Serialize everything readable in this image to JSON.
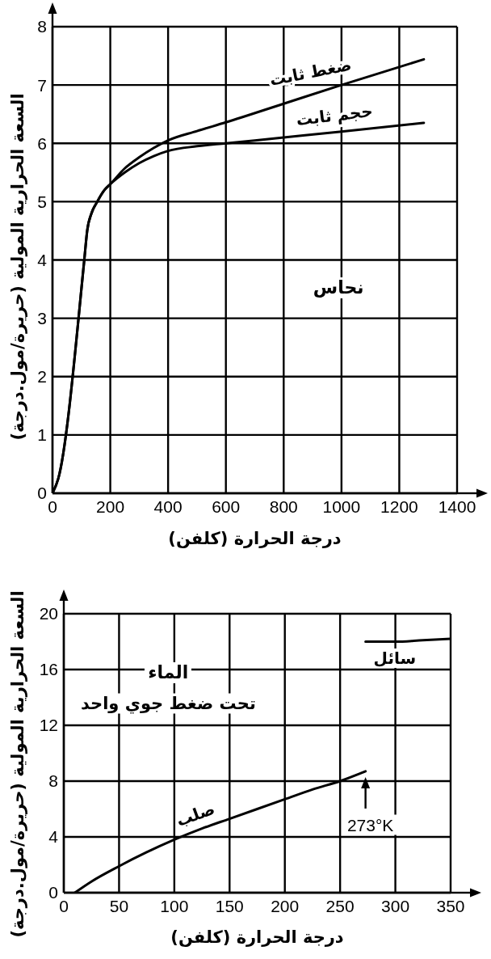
{
  "chart_data": [
    {
      "type": "line",
      "title": "نحاس",
      "xlabel": "درجة الحرارة (كلفن)",
      "ylabel": "السعة الحرارية المولية (حريرة/مول.درجة)",
      "series": [
        {
          "name": "ضغط ثابت",
          "color": "#000000",
          "x": [
            0,
            20,
            110,
            120,
            135,
            155,
            180,
            200,
            250,
            300,
            350,
            400,
            500,
            600,
            800,
            1000,
            1285
          ],
          "values": [
            0,
            0.25,
            4.0,
            4.5,
            4.8,
            5.0,
            5.2,
            5.3,
            5.57,
            5.76,
            5.92,
            6.05,
            6.21,
            6.36,
            6.68,
            7.0,
            7.44
          ]
        },
        {
          "name": "حجم ثابت",
          "color": "#000000",
          "x": [
            0,
            20,
            110,
            120,
            135,
            155,
            180,
            200,
            250,
            300,
            350,
            400,
            500,
            600,
            800,
            1000,
            1285
          ],
          "values": [
            0,
            0.25,
            4.0,
            4.5,
            4.8,
            5.0,
            5.2,
            5.3,
            5.5,
            5.66,
            5.78,
            5.87,
            5.95,
            6.0,
            6.1,
            6.2,
            6.35
          ]
        }
      ],
      "xlim": [
        0,
        1400
      ],
      "ylim": [
        0,
        8
      ],
      "xticks": [
        0,
        200,
        400,
        600,
        800,
        1000,
        1200,
        1400
      ],
      "yticks": [
        0,
        1,
        2,
        3,
        4,
        5,
        6,
        7,
        8
      ],
      "grid": true
    },
    {
      "type": "line",
      "title": "الماء",
      "subtitle": "تحت ضغط جوي واحد",
      "xlabel": "درجة الحرارة (كلفن)",
      "ylabel": "السعة الحرارية المولية (حريرة/مول.درجة)",
      "series": [
        {
          "name": "صلب",
          "color": "#000000",
          "x": [
            10,
            25,
            50,
            75,
            100,
            125,
            150,
            175,
            200,
            225,
            250,
            273
          ],
          "values": [
            0,
            0.8,
            1.9,
            2.9,
            3.8,
            4.6,
            5.3,
            6.0,
            6.7,
            7.4,
            8.0,
            8.7
          ]
        },
        {
          "name": "سائل",
          "color": "#000000",
          "x": [
            273,
            300,
            325,
            350
          ],
          "values": [
            18.0,
            18.0,
            18.1,
            18.2
          ]
        }
      ],
      "xlim": [
        0,
        350
      ],
      "ylim": [
        0,
        20
      ],
      "xticks": [
        0,
        50,
        100,
        150,
        200,
        250,
        300,
        350
      ],
      "yticks": [
        0,
        4,
        8,
        12,
        16,
        20
      ],
      "grid": true,
      "annotations": [
        {
          "text": "273°K",
          "x": 273,
          "y": 8.7
        }
      ]
    }
  ]
}
